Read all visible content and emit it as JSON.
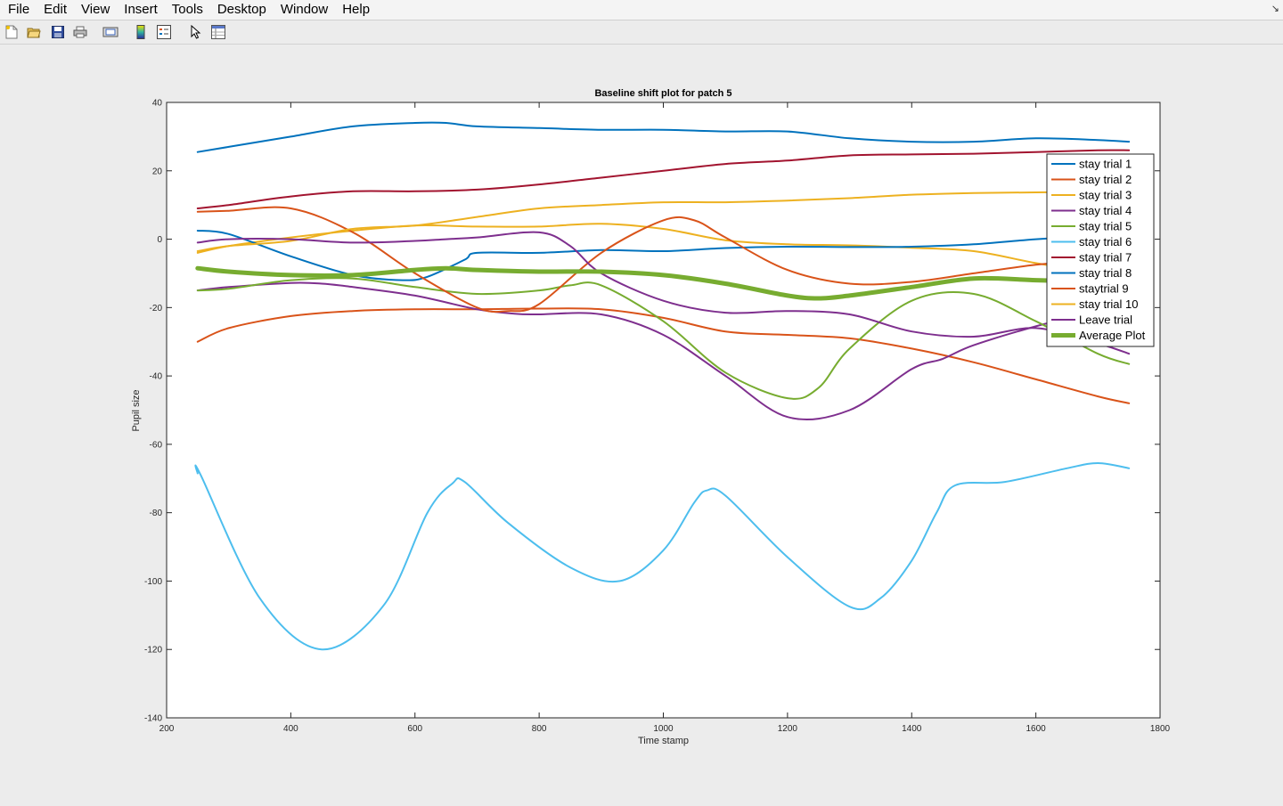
{
  "window": {
    "menu": [
      "File",
      "Edit",
      "View",
      "Insert",
      "Tools",
      "Desktop",
      "Window",
      "Help"
    ]
  },
  "toolbar": {
    "icons": [
      "new-figure-icon",
      "open-file-icon",
      "save-icon",
      "print-icon",
      "print-preview-icon",
      "colorbar-icon",
      "legend-icon",
      "pointer-icon",
      "property-inspector-icon"
    ]
  },
  "chart_data": {
    "type": "line",
    "title": "Baseline shift plot for patch 5",
    "xlabel": "Time stamp",
    "ylabel": "Pupil size",
    "xlim": [
      200,
      1800
    ],
    "ylim": [
      -140,
      40
    ],
    "xticks": [
      200,
      400,
      600,
      800,
      1000,
      1200,
      1400,
      1600,
      1800
    ],
    "yticks": [
      40,
      20,
      0,
      -20,
      -40,
      -60,
      -80,
      -100,
      -120,
      -140
    ],
    "grid": false,
    "legend_position": "top-right",
    "series": [
      {
        "name": "stay trial 1",
        "color": "#0072bd",
        "width": 2,
        "x": [
          250,
          300,
          400,
          500,
          600,
          650,
          700,
          800,
          900,
          1000,
          1100,
          1200,
          1300,
          1400,
          1500,
          1600,
          1700,
          1750
        ],
        "y": [
          25.5,
          27,
          30,
          33,
          34,
          34,
          33,
          32.5,
          32,
          32,
          31.5,
          31.5,
          29.5,
          28.5,
          28.5,
          29.5,
          29,
          28.5
        ]
      },
      {
        "name": "stay trial 2",
        "color": "#d95319",
        "width": 2,
        "x": [
          250,
          300,
          400,
          500,
          600,
          700,
          800,
          900,
          1000,
          1100,
          1200,
          1300,
          1400,
          1500,
          1600,
          1700,
          1750
        ],
        "y": [
          -30,
          -26,
          -22.5,
          -21,
          -20.5,
          -20.5,
          -20.3,
          -20.5,
          -23,
          -27,
          -28,
          -29,
          -32,
          -36,
          -41,
          -46,
          -48
        ]
      },
      {
        "name": "stay trial 3",
        "color": "#edb120",
        "width": 2,
        "x": [
          250,
          300,
          400,
          500,
          600,
          700,
          800,
          900,
          1000,
          1100,
          1200,
          1300,
          1400,
          1500,
          1600,
          1700,
          1750
        ],
        "y": [
          -4,
          -2,
          0.5,
          2.5,
          4,
          3.7,
          3.7,
          4.5,
          3,
          -0.3,
          -1.5,
          -1.8,
          -2.5,
          -3.5,
          -7,
          -10,
          -11
        ]
      },
      {
        "name": "stay trial 4",
        "color": "#7e2f8e",
        "width": 2,
        "x": [
          250,
          300,
          400,
          450,
          500,
          600,
          700,
          760,
          800,
          900,
          1000,
          1100,
          1200,
          1300,
          1400,
          1450,
          1500,
          1600,
          1700,
          1750
        ],
        "y": [
          -15,
          -14,
          -12.8,
          -13,
          -14,
          -16.5,
          -20.5,
          -21.8,
          -22,
          -22,
          -28,
          -40,
          -52,
          -50,
          -38,
          -35,
          -31,
          -25.5,
          -21,
          -18.5
        ]
      },
      {
        "name": "stay trial 5",
        "color": "#77ac30",
        "width": 2,
        "x": [
          250,
          300,
          400,
          500,
          600,
          700,
          800,
          850,
          900,
          1000,
          1100,
          1200,
          1250,
          1300,
          1400,
          1500,
          1600,
          1700,
          1750
        ],
        "y": [
          -15,
          -14.5,
          -12,
          -11.5,
          -14,
          -16,
          -15,
          -13.5,
          -13.5,
          -24,
          -39,
          -46.5,
          -43.5,
          -32,
          -18,
          -16,
          -24,
          -33.5,
          -36.5
        ]
      },
      {
        "name": "stay trial 6",
        "color": "#4dbeee",
        "width": 2,
        "x": [
          250,
          255,
          350,
          450,
          550,
          620,
          660,
          680,
          750,
          850,
          930,
          1000,
          1050,
          1070,
          1100,
          1200,
          1300,
          1350,
          1400,
          1440,
          1470,
          1550,
          1650,
          1700,
          1750
        ],
        "y": [
          -68.5,
          -69,
          -105,
          -120,
          -107,
          -80,
          -71.5,
          -71,
          -83,
          -96,
          -100,
          -91,
          -77,
          -73.5,
          -75,
          -93,
          -107.5,
          -105,
          -94,
          -80,
          -72,
          -71,
          -67,
          -65.5,
          -67
        ]
      },
      {
        "name": "stay trial 7",
        "color": "#a2142f",
        "width": 2,
        "x": [
          250,
          300,
          400,
          500,
          600,
          700,
          800,
          900,
          1000,
          1100,
          1200,
          1300,
          1400,
          1500,
          1600,
          1700,
          1750
        ],
        "y": [
          9,
          10,
          12.5,
          14,
          14,
          14.5,
          16,
          18,
          20,
          22,
          23,
          24.5,
          24.8,
          25,
          25.5,
          26,
          26
        ]
      },
      {
        "name": "stay trial 8",
        "color": "#0072bd",
        "width": 2,
        "x": [
          250,
          300,
          400,
          500,
          580,
          620,
          680,
          700,
          800,
          900,
          1000,
          1100,
          1200,
          1300,
          1400,
          1500,
          1600,
          1700,
          1750
        ],
        "y": [
          2.5,
          1.5,
          -5,
          -10.5,
          -12,
          -11,
          -6,
          -4,
          -4,
          -3.2,
          -3.5,
          -2.6,
          -2.2,
          -2.3,
          -2.2,
          -1.5,
          0,
          1,
          1.2
        ]
      },
      {
        "name": "staytrial 9",
        "color": "#d95319",
        "width": 2,
        "x": [
          250,
          300,
          400,
          500,
          600,
          700,
          750,
          800,
          900,
          1000,
          1050,
          1100,
          1200,
          1300,
          1400,
          1500,
          1600,
          1700,
          1750
        ],
        "y": [
          8,
          8.3,
          9,
          2,
          -10,
          -20,
          -21,
          -19,
          -4,
          5.5,
          5.5,
          0.5,
          -9,
          -13,
          -12.5,
          -10,
          -7.5,
          -6,
          -5.5
        ]
      },
      {
        "name": "stay trial 10",
        "color": "#edb120",
        "width": 2,
        "x": [
          250,
          300,
          400,
          500,
          600,
          700,
          800,
          900,
          1000,
          1100,
          1200,
          1300,
          1400,
          1500,
          1600,
          1700,
          1750
        ],
        "y": [
          -3.5,
          -2,
          -0.5,
          3,
          4,
          6.5,
          9,
          10,
          10.8,
          10.8,
          11.3,
          12,
          13,
          13.5,
          13.7,
          13.8,
          13.8
        ]
      },
      {
        "name": "Leave trial",
        "color": "#7e2f8e",
        "width": 2,
        "x": [
          250,
          300,
          400,
          500,
          600,
          650,
          700,
          800,
          850,
          900,
          1000,
          1100,
          1200,
          1300,
          1400,
          1500,
          1600,
          1700,
          1750
        ],
        "y": [
          -1,
          0,
          0,
          -1,
          -0.5,
          0,
          0.5,
          2,
          -2,
          -10,
          -18,
          -21.5,
          -21,
          -22,
          -27,
          -28.5,
          -26,
          -30.5,
          -33.5
        ]
      },
      {
        "name": "Average Plot",
        "color": "#77ac30",
        "width": 5,
        "x": [
          250,
          300,
          400,
          500,
          600,
          650,
          700,
          800,
          900,
          1000,
          1100,
          1200,
          1250,
          1300,
          1400,
          1500,
          1600,
          1700,
          1750
        ],
        "y": [
          -8.5,
          -9.5,
          -10.5,
          -10.5,
          -9,
          -8.5,
          -9,
          -9.5,
          -9.5,
          -10.5,
          -13,
          -16.5,
          -17.3,
          -16.5,
          -14,
          -11.5,
          -12,
          -12.5,
          -13
        ]
      }
    ]
  }
}
